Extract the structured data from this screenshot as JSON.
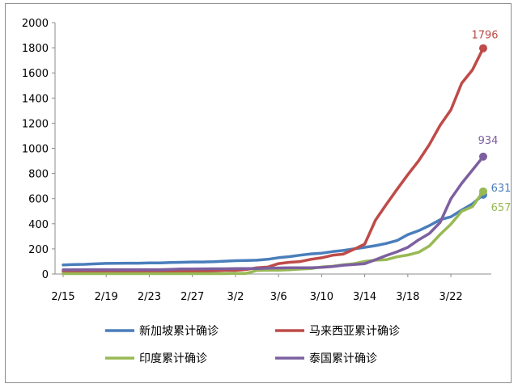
{
  "chart_data": {
    "type": "line",
    "title": "",
    "xlabel": "",
    "ylabel": "",
    "ylim": [
      0,
      2000
    ],
    "yticks": [
      0,
      200,
      400,
      600,
      800,
      1000,
      1200,
      1400,
      1600,
      1800,
      2000
    ],
    "x_tick_labels": [
      "2/15",
      "2/19",
      "2/23",
      "2/27",
      "3/2",
      "3/6",
      "3/10",
      "3/14",
      "3/18",
      "3/22"
    ],
    "x": [
      "2/15",
      "2/16",
      "2/17",
      "2/18",
      "2/19",
      "2/20",
      "2/21",
      "2/22",
      "2/23",
      "2/24",
      "2/25",
      "2/26",
      "2/27",
      "2/28",
      "2/29",
      "3/1",
      "3/2",
      "3/3",
      "3/4",
      "3/5",
      "3/6",
      "3/7",
      "3/8",
      "3/9",
      "3/10",
      "3/11",
      "3/12",
      "3/13",
      "3/14",
      "3/15",
      "3/16",
      "3/17",
      "3/18",
      "3/19",
      "3/20",
      "3/21",
      "3/22",
      "3/23",
      "3/24",
      "3/25"
    ],
    "grid": false,
    "legend_position": "bottom",
    "series": [
      {
        "name": "新加坡累计确诊",
        "color": "#4a7ebb",
        "values": [
          72,
          75,
          77,
          81,
          84,
          85,
          86,
          86,
          89,
          89,
          91,
          93,
          96,
          96,
          98,
          102,
          106,
          108,
          110,
          117,
          130,
          138,
          150,
          160,
          166,
          178,
          187,
          200,
          212,
          226,
          243,
          266,
          313,
          345,
          385,
          432,
          455,
          509,
          558,
          631
        ]
      },
      {
        "name": "马来西亚累计确诊",
        "color": "#be4b48",
        "values": [
          22,
          22,
          22,
          22,
          22,
          22,
          22,
          22,
          22,
          22,
          22,
          22,
          22,
          23,
          25,
          29,
          29,
          36,
          50,
          55,
          83,
          93,
          99,
          117,
          129,
          149,
          158,
          197,
          238,
          428,
          553,
          673,
          790,
          900,
          1030,
          1183,
          1306,
          1518,
          1624,
          1796
        ]
      },
      {
        "name": "印度累计确诊",
        "color": "#98b954",
        "values": [
          3,
          3,
          3,
          3,
          3,
          3,
          3,
          3,
          3,
          3,
          3,
          3,
          3,
          3,
          3,
          3,
          5,
          5,
          28,
          30,
          31,
          34,
          39,
          43,
          56,
          62,
          73,
          82,
          100,
          110,
          114,
          137,
          151,
          173,
          223,
          315,
          396,
          499,
          536,
          657
        ]
      },
      {
        "name": "泰国累计确诊",
        "color": "#7d60a0",
        "values": [
          34,
          34,
          35,
          35,
          35,
          35,
          35,
          35,
          35,
          35,
          37,
          40,
          40,
          41,
          42,
          42,
          43,
          43,
          43,
          47,
          48,
          50,
          50,
          50,
          53,
          59,
          70,
          75,
          82,
          114,
          147,
          177,
          212,
          272,
          322,
          411,
          599,
          721,
          827,
          934
        ]
      }
    ],
    "end_labels": [
      "631",
      "1796",
      "657",
      "934"
    ]
  }
}
